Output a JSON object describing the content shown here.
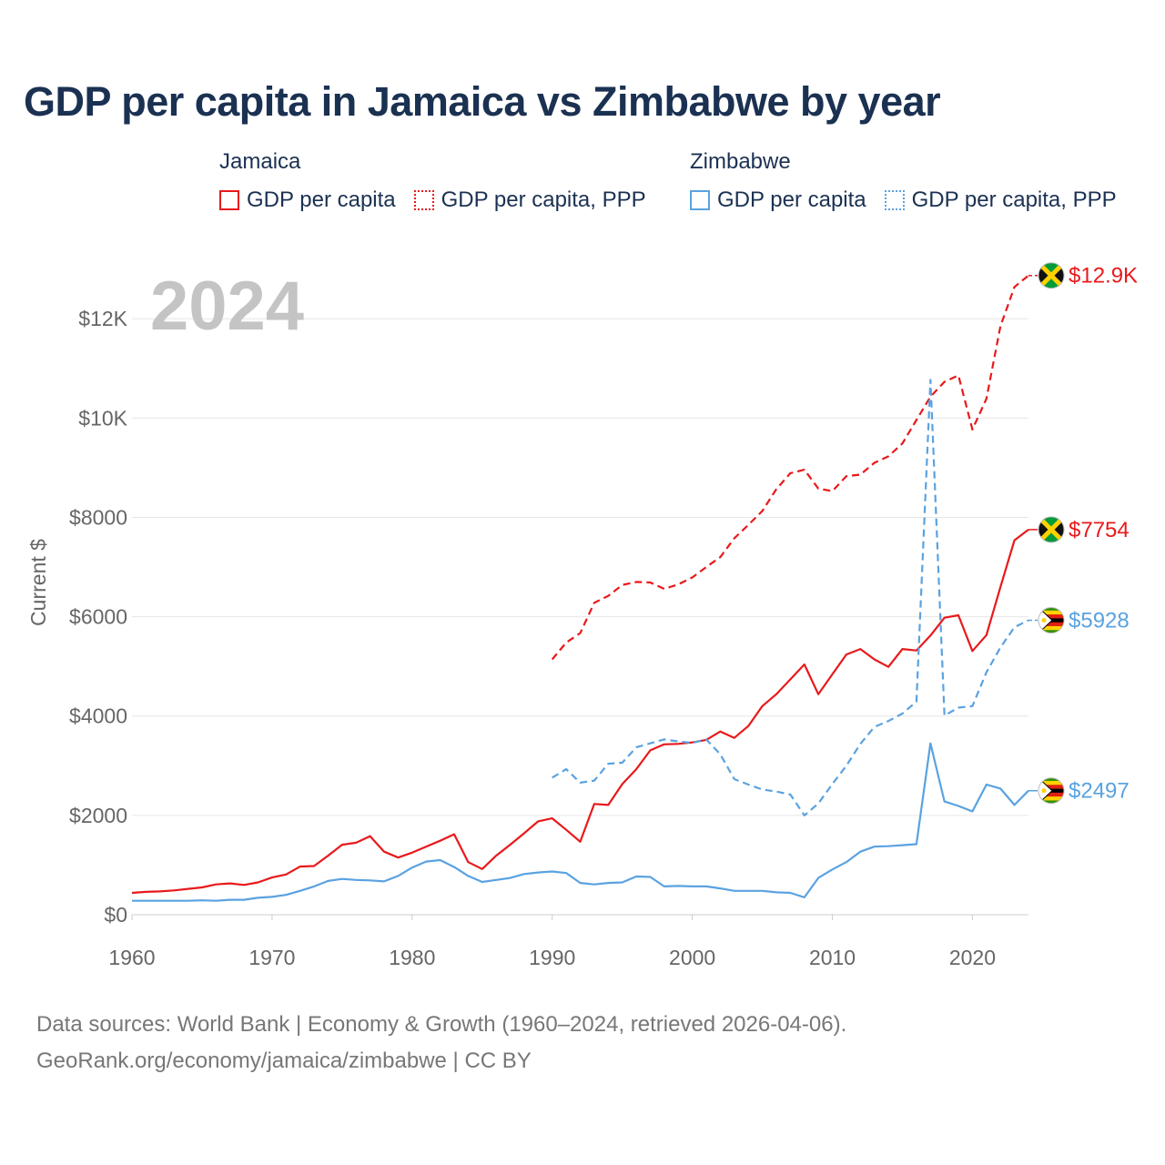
{
  "title": "GDP per capita in Jamaica vs Zimbabwe by year",
  "legend": {
    "groups": [
      {
        "country": "Jamaica",
        "items": [
          "GDP per capita",
          "GDP per capita, PPP"
        ]
      },
      {
        "country": "Zimbabwe",
        "items": [
          "GDP per capita",
          "GDP per capita, PPP"
        ]
      }
    ]
  },
  "source": {
    "line1": "Data sources: World Bank | Economy & Growth (1960–2024, retrieved 2026-04-06).",
    "line2": "GeoRank.org/economy/jamaica/zimbabwe | CC BY"
  },
  "colors": {
    "jamaica": "#e8191b",
    "zimbabwe": "#5aa2e0",
    "grid": "#e6e6e6",
    "text": "#666666"
  },
  "chart_data": {
    "type": "line",
    "title": "GDP per capita in Jamaica vs Zimbabwe by year",
    "year_label": "2024",
    "xlabel": "",
    "ylabel": "Current $",
    "xlim": [
      1960,
      2024
    ],
    "ylim": [
      0,
      13000
    ],
    "x_ticks": [
      1960,
      1970,
      1980,
      1990,
      2000,
      2010,
      2020
    ],
    "y_ticks": [
      {
        "value": 0,
        "label": "$0"
      },
      {
        "value": 2000,
        "label": "$2000"
      },
      {
        "value": 4000,
        "label": "$4000"
      },
      {
        "value": 6000,
        "label": "$6000"
      },
      {
        "value": 8000,
        "label": "$8000"
      },
      {
        "value": 10000,
        "label": "$10K"
      },
      {
        "value": 12000,
        "label": "$12K"
      }
    ],
    "grid": true,
    "series": [
      {
        "name": "Jamaica GDP per capita",
        "country": "Jamaica",
        "style": "solid",
        "color": "#e8191b",
        "end_label": "$7754",
        "flag": "jamaica",
        "points": [
          [
            1960,
            440
          ],
          [
            1961,
            460
          ],
          [
            1962,
            470
          ],
          [
            1963,
            490
          ],
          [
            1964,
            520
          ],
          [
            1965,
            550
          ],
          [
            1966,
            610
          ],
          [
            1967,
            630
          ],
          [
            1968,
            600
          ],
          [
            1969,
            650
          ],
          [
            1970,
            750
          ],
          [
            1971,
            810
          ],
          [
            1972,
            970
          ],
          [
            1973,
            980
          ],
          [
            1974,
            1190
          ],
          [
            1975,
            1410
          ],
          [
            1976,
            1450
          ],
          [
            1977,
            1580
          ],
          [
            1978,
            1270
          ],
          [
            1979,
            1150
          ],
          [
            1980,
            1250
          ],
          [
            1981,
            1370
          ],
          [
            1982,
            1490
          ],
          [
            1983,
            1620
          ],
          [
            1984,
            1060
          ],
          [
            1985,
            920
          ],
          [
            1986,
            1190
          ],
          [
            1987,
            1410
          ],
          [
            1988,
            1640
          ],
          [
            1989,
            1880
          ],
          [
            1990,
            1940
          ],
          [
            1991,
            1710
          ],
          [
            1992,
            1470
          ],
          [
            1993,
            2230
          ],
          [
            1994,
            2210
          ],
          [
            1995,
            2630
          ],
          [
            1996,
            2930
          ],
          [
            1997,
            3310
          ],
          [
            1998,
            3430
          ],
          [
            1999,
            3440
          ],
          [
            2000,
            3470
          ],
          [
            2001,
            3520
          ],
          [
            2002,
            3690
          ],
          [
            2003,
            3560
          ],
          [
            2004,
            3800
          ],
          [
            2005,
            4200
          ],
          [
            2006,
            4440
          ],
          [
            2007,
            4740
          ],
          [
            2008,
            5040
          ],
          [
            2009,
            4440
          ],
          [
            2010,
            4840
          ],
          [
            2011,
            5240
          ],
          [
            2012,
            5350
          ],
          [
            2013,
            5140
          ],
          [
            2014,
            4990
          ],
          [
            2015,
            5350
          ],
          [
            2016,
            5320
          ],
          [
            2017,
            5620
          ],
          [
            2018,
            5980
          ],
          [
            2019,
            6030
          ],
          [
            2020,
            5310
          ],
          [
            2021,
            5630
          ],
          [
            2022,
            6600
          ],
          [
            2023,
            7540
          ],
          [
            2024,
            7754
          ]
        ]
      },
      {
        "name": "Jamaica GDP per capita, PPP",
        "country": "Jamaica",
        "style": "dashed",
        "color": "#e8191b",
        "end_label": "$12.9K",
        "flag": "jamaica",
        "points": [
          [
            1990,
            5140
          ],
          [
            1991,
            5480
          ],
          [
            1992,
            5670
          ],
          [
            1993,
            6280
          ],
          [
            1994,
            6420
          ],
          [
            1995,
            6640
          ],
          [
            1996,
            6700
          ],
          [
            1997,
            6690
          ],
          [
            1998,
            6560
          ],
          [
            1999,
            6650
          ],
          [
            2000,
            6790
          ],
          [
            2001,
            7000
          ],
          [
            2002,
            7200
          ],
          [
            2003,
            7580
          ],
          [
            2004,
            7850
          ],
          [
            2005,
            8130
          ],
          [
            2006,
            8570
          ],
          [
            2007,
            8890
          ],
          [
            2008,
            8960
          ],
          [
            2009,
            8580
          ],
          [
            2010,
            8530
          ],
          [
            2011,
            8830
          ],
          [
            2012,
            8860
          ],
          [
            2013,
            9100
          ],
          [
            2014,
            9230
          ],
          [
            2015,
            9490
          ],
          [
            2016,
            9960
          ],
          [
            2017,
            10430
          ],
          [
            2018,
            10730
          ],
          [
            2019,
            10860
          ],
          [
            2020,
            9770
          ],
          [
            2021,
            10390
          ],
          [
            2022,
            11850
          ],
          [
            2023,
            12640
          ],
          [
            2024,
            12870
          ]
        ]
      },
      {
        "name": "Zimbabwe GDP per capita",
        "country": "Zimbabwe",
        "style": "solid",
        "color": "#5aa2e0",
        "end_label": "$2497",
        "flag": "zimbabwe",
        "points": [
          [
            1960,
            280
          ],
          [
            1961,
            280
          ],
          [
            1962,
            280
          ],
          [
            1963,
            280
          ],
          [
            1964,
            280
          ],
          [
            1965,
            290
          ],
          [
            1966,
            280
          ],
          [
            1967,
            300
          ],
          [
            1968,
            300
          ],
          [
            1969,
            340
          ],
          [
            1970,
            360
          ],
          [
            1971,
            400
          ],
          [
            1972,
            480
          ],
          [
            1973,
            570
          ],
          [
            1974,
            680
          ],
          [
            1975,
            720
          ],
          [
            1976,
            700
          ],
          [
            1977,
            690
          ],
          [
            1978,
            670
          ],
          [
            1979,
            780
          ],
          [
            1980,
            950
          ],
          [
            1981,
            1070
          ],
          [
            1982,
            1100
          ],
          [
            1983,
            960
          ],
          [
            1984,
            780
          ],
          [
            1985,
            660
          ],
          [
            1986,
            700
          ],
          [
            1987,
            740
          ],
          [
            1988,
            820
          ],
          [
            1989,
            850
          ],
          [
            1990,
            870
          ],
          [
            1991,
            840
          ],
          [
            1992,
            640
          ],
          [
            1993,
            610
          ],
          [
            1994,
            640
          ],
          [
            1995,
            650
          ],
          [
            1996,
            770
          ],
          [
            1997,
            760
          ],
          [
            1998,
            570
          ],
          [
            1999,
            580
          ],
          [
            2000,
            570
          ],
          [
            2001,
            570
          ],
          [
            2002,
            530
          ],
          [
            2003,
            480
          ],
          [
            2004,
            480
          ],
          [
            2005,
            480
          ],
          [
            2006,
            450
          ],
          [
            2007,
            440
          ],
          [
            2008,
            350
          ],
          [
            2009,
            740
          ],
          [
            2010,
            910
          ],
          [
            2011,
            1060
          ],
          [
            2012,
            1270
          ],
          [
            2013,
            1370
          ],
          [
            2014,
            1380
          ],
          [
            2015,
            1400
          ],
          [
            2016,
            1420
          ],
          [
            2017,
            3450
          ],
          [
            2018,
            2280
          ],
          [
            2019,
            2190
          ],
          [
            2020,
            2080
          ],
          [
            2021,
            2620
          ],
          [
            2022,
            2540
          ],
          [
            2023,
            2210
          ],
          [
            2024,
            2497
          ]
        ]
      },
      {
        "name": "Zimbabwe GDP per capita, PPP",
        "country": "Zimbabwe",
        "style": "dashed",
        "color": "#5aa2e0",
        "end_label": "$5928",
        "flag": "zimbabwe",
        "points": [
          [
            1990,
            2760
          ],
          [
            1991,
            2930
          ],
          [
            1992,
            2660
          ],
          [
            1993,
            2700
          ],
          [
            1994,
            3040
          ],
          [
            1995,
            3060
          ],
          [
            1996,
            3370
          ],
          [
            1997,
            3450
          ],
          [
            1998,
            3530
          ],
          [
            1999,
            3490
          ],
          [
            2000,
            3460
          ],
          [
            2001,
            3530
          ],
          [
            2002,
            3230
          ],
          [
            2003,
            2730
          ],
          [
            2004,
            2620
          ],
          [
            2005,
            2520
          ],
          [
            2006,
            2480
          ],
          [
            2007,
            2420
          ],
          [
            2008,
            2000
          ],
          [
            2009,
            2240
          ],
          [
            2010,
            2630
          ],
          [
            2011,
            3000
          ],
          [
            2012,
            3440
          ],
          [
            2013,
            3780
          ],
          [
            2014,
            3900
          ],
          [
            2015,
            4050
          ],
          [
            2016,
            4290
          ],
          [
            2017,
            10770
          ],
          [
            2018,
            4010
          ],
          [
            2019,
            4170
          ],
          [
            2020,
            4200
          ],
          [
            2021,
            4880
          ],
          [
            2022,
            5380
          ],
          [
            2023,
            5790
          ],
          [
            2024,
            5928
          ]
        ]
      }
    ]
  }
}
